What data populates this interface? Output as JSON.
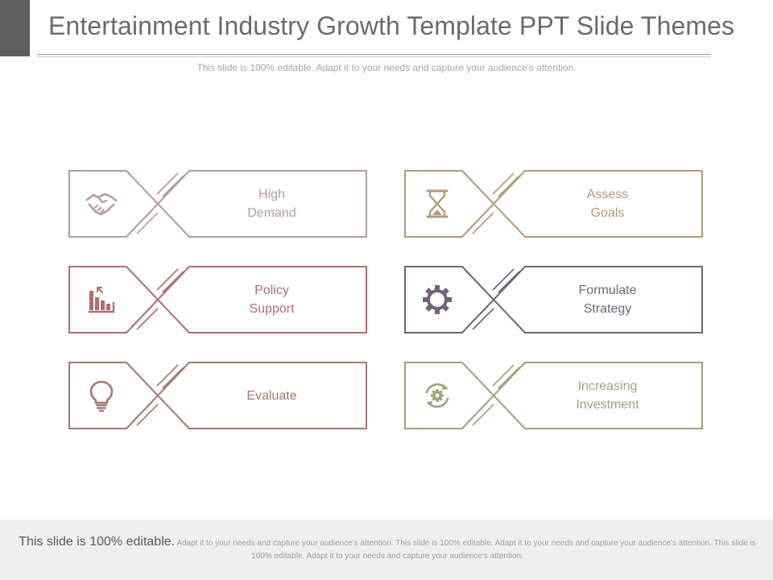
{
  "slide": {
    "title": "Entertainment Industry Growth Template PPT Slide Themes",
    "subtitle": "This slide is 100% editable. Adapt it to your needs and capture your audience's attention."
  },
  "cards": [
    {
      "label": "High\nDemand",
      "icon": "handshake-icon",
      "color": "#b49aa1"
    },
    {
      "label": "Assess\nGoals",
      "icon": "hourglass-icon",
      "color": "#b19a78"
    },
    {
      "label": "Policy\nSupport",
      "icon": "bar-chart-icon",
      "color": "#b06d70"
    },
    {
      "label": "Formulate\nStrategy",
      "icon": "gear-icon",
      "color": "#6f6378"
    },
    {
      "label": "Evaluate",
      "icon": "lightbulb-icon",
      "color": "#a07a70"
    },
    {
      "label": "Increasing\nInvestment",
      "icon": "recycle-gear-icon",
      "color": "#9da37a"
    }
  ],
  "footer": {
    "lead": "This slide is 100% editable.",
    "body": " Adapt it to your needs and capture your audience's attention. This slide is 100% editable. Adapt it to your needs and capture your audience's attention. This slide is 100% editable. Adapt it to your needs and capture your audience's attention."
  }
}
